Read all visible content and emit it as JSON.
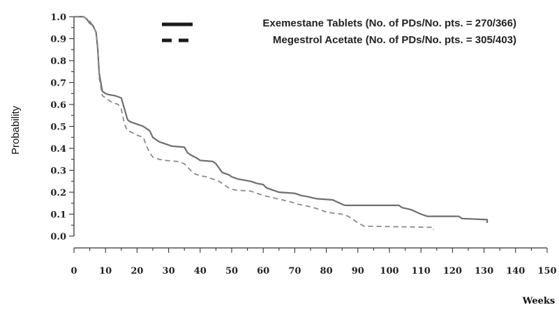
{
  "chart_data": {
    "type": "line",
    "xlabel": "Weeks",
    "ylabel": "Probability",
    "xlim": [
      0,
      150
    ],
    "ylim": [
      0,
      1.0
    ],
    "xticks": [
      "0",
      "10",
      "20",
      "30",
      "40",
      "50",
      "60",
      "70",
      "80",
      "90",
      "100",
      "110",
      "120",
      "130",
      "140",
      "150"
    ],
    "yticks": [
      "0.0",
      "0.1",
      "0.2",
      "0.3",
      "0.4",
      "0.5",
      "0.6",
      "0.7",
      "0.8",
      "0.9",
      "1.0"
    ],
    "grid": false,
    "legend": "top-right",
    "series": [
      {
        "name": "Exemestane Tablets (No. of PDs/No. pts. = 270/366)",
        "style": "solid",
        "color": "#6e6e6e",
        "points": [
          [
            0,
            1.0
          ],
          [
            3,
            1.0
          ],
          [
            4,
            0.99
          ],
          [
            5,
            0.97
          ],
          [
            6,
            0.96
          ],
          [
            7,
            0.93
          ],
          [
            7.5,
            0.86
          ],
          [
            8,
            0.74
          ],
          [
            9,
            0.66
          ],
          [
            10,
            0.65
          ],
          [
            11,
            0.645
          ],
          [
            13,
            0.64
          ],
          [
            15,
            0.63
          ],
          [
            16,
            0.58
          ],
          [
            17,
            0.53
          ],
          [
            18,
            0.52
          ],
          [
            20,
            0.51
          ],
          [
            22,
            0.5
          ],
          [
            24,
            0.48
          ],
          [
            25,
            0.45
          ],
          [
            27,
            0.43
          ],
          [
            29,
            0.42
          ],
          [
            31,
            0.41
          ],
          [
            35,
            0.405
          ],
          [
            36,
            0.38
          ],
          [
            37,
            0.37
          ],
          [
            39,
            0.355
          ],
          [
            40,
            0.345
          ],
          [
            44,
            0.34
          ],
          [
            45,
            0.33
          ],
          [
            46,
            0.31
          ],
          [
            47,
            0.29
          ],
          [
            49,
            0.28
          ],
          [
            50,
            0.27
          ],
          [
            52,
            0.26
          ],
          [
            54,
            0.255
          ],
          [
            56,
            0.25
          ],
          [
            58,
            0.24
          ],
          [
            60,
            0.235
          ],
          [
            61,
            0.22
          ],
          [
            63,
            0.21
          ],
          [
            65,
            0.2
          ],
          [
            70,
            0.195
          ],
          [
            72,
            0.185
          ],
          [
            74,
            0.18
          ],
          [
            77,
            0.17
          ],
          [
            82,
            0.165
          ],
          [
            85,
            0.145
          ],
          [
            86,
            0.14
          ],
          [
            103,
            0.14
          ],
          [
            104,
            0.13
          ],
          [
            107,
            0.12
          ],
          [
            110,
            0.1
          ],
          [
            112,
            0.09
          ],
          [
            122,
            0.09
          ],
          [
            123,
            0.08
          ],
          [
            131,
            0.075
          ],
          [
            131,
            0.06
          ]
        ]
      },
      {
        "name": "Megestrol Acetate (No. of PDs/No. pts. = 305/403)",
        "style": "dashed",
        "color": "#8a8a8a",
        "points": [
          [
            0,
            1.0
          ],
          [
            3,
            1.0
          ],
          [
            4,
            0.99
          ],
          [
            5,
            0.98
          ],
          [
            6,
            0.96
          ],
          [
            7,
            0.93
          ],
          [
            7.5,
            0.85
          ],
          [
            8,
            0.72
          ],
          [
            9,
            0.64
          ],
          [
            10,
            0.63
          ],
          [
            12,
            0.61
          ],
          [
            14,
            0.6
          ],
          [
            15,
            0.58
          ],
          [
            16,
            0.51
          ],
          [
            17,
            0.48
          ],
          [
            18,
            0.475
          ],
          [
            20,
            0.46
          ],
          [
            22,
            0.45
          ],
          [
            23,
            0.41
          ],
          [
            24,
            0.38
          ],
          [
            25,
            0.36
          ],
          [
            27,
            0.35
          ],
          [
            29,
            0.345
          ],
          [
            33,
            0.34
          ],
          [
            35,
            0.33
          ],
          [
            37,
            0.3
          ],
          [
            38,
            0.285
          ],
          [
            40,
            0.275
          ],
          [
            42,
            0.27
          ],
          [
            44,
            0.26
          ],
          [
            46,
            0.25
          ],
          [
            48,
            0.23
          ],
          [
            49,
            0.22
          ],
          [
            51,
            0.21
          ],
          [
            56,
            0.205
          ],
          [
            58,
            0.195
          ],
          [
            60,
            0.185
          ],
          [
            63,
            0.175
          ],
          [
            66,
            0.165
          ],
          [
            69,
            0.155
          ],
          [
            71,
            0.145
          ],
          [
            73,
            0.14
          ],
          [
            76,
            0.13
          ],
          [
            78,
            0.12
          ],
          [
            80,
            0.11
          ],
          [
            82,
            0.105
          ],
          [
            85,
            0.1
          ],
          [
            87,
            0.09
          ],
          [
            89,
            0.07
          ],
          [
            90,
            0.06
          ],
          [
            92,
            0.045
          ],
          [
            114,
            0.04
          ],
          [
            114,
            0.03
          ]
        ]
      }
    ]
  }
}
